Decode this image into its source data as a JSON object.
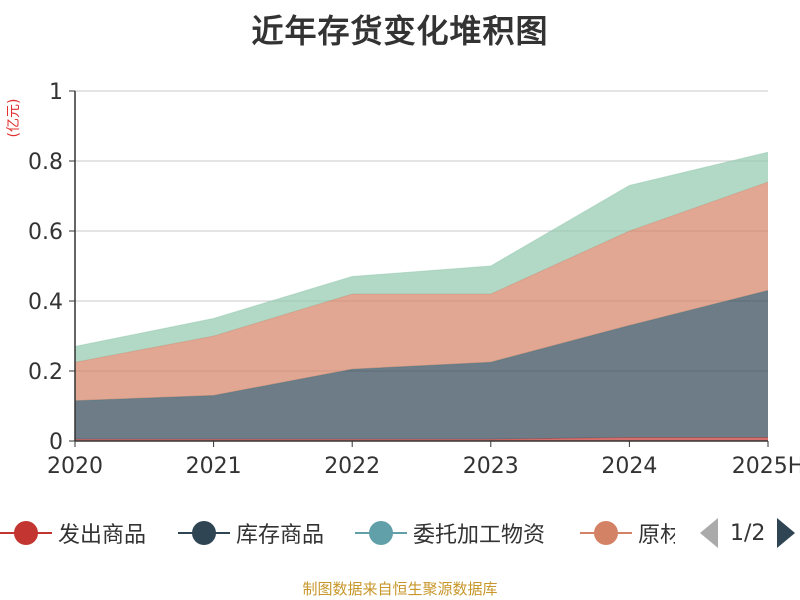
{
  "chart_data": {
    "type": "area",
    "stacked": true,
    "title": "近年存货变化堆积图",
    "y_unit": "(亿元)",
    "x": [
      "2020",
      "2021",
      "2022",
      "2023",
      "2024",
      "2025H"
    ],
    "ylim": [
      0,
      1
    ],
    "yticks": [
      "0",
      "0.2",
      "0.4",
      "0.6",
      "0.8",
      "1"
    ],
    "grid": true,
    "legend_position": "bottom",
    "series": [
      {
        "name": "发出商品",
        "color": "#c23531",
        "values": [
          0.005,
          0.005,
          0.005,
          0.005,
          0.01,
          0.01
        ]
      },
      {
        "name": "库存商品",
        "color": "#2f4554",
        "values": [
          0.11,
          0.125,
          0.2,
          0.22,
          0.32,
          0.42
        ]
      },
      {
        "name": "委托加工物资",
        "color": "#61a0a8",
        "values": [
          0,
          0,
          0,
          0,
          0,
          0
        ]
      },
      {
        "name": "原材料",
        "color": "#d48265",
        "values": [
          0.11,
          0.17,
          0.215,
          0.195,
          0.27,
          0.31
        ]
      },
      {
        "name": "",
        "color": "#91c7ae",
        "values": [
          0.045,
          0.05,
          0.05,
          0.08,
          0.13,
          0.085
        ]
      }
    ]
  },
  "legend": {
    "items": [
      {
        "label": "发出商品",
        "color": "#c23531"
      },
      {
        "label": "库存商品",
        "color": "#2f4554"
      },
      {
        "label": "委托加工物资",
        "color": "#61a0a8"
      },
      {
        "label": "原材料",
        "color": "#d48265"
      }
    ],
    "page_indicator": "1/2",
    "prev_icon": "triangle-left-icon",
    "next_icon": "triangle-right-icon"
  },
  "source": "制图数据来自恒生聚源数据库"
}
